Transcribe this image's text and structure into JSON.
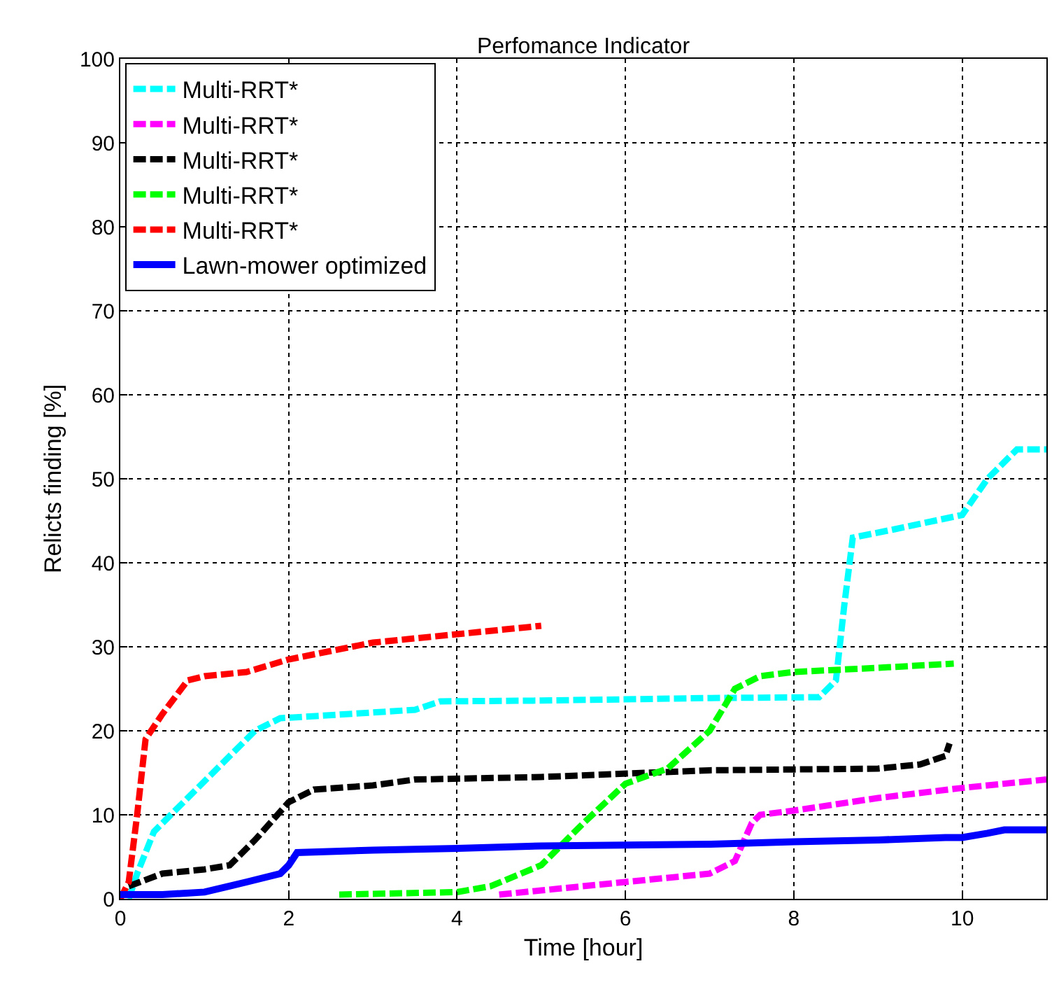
{
  "chart_data": {
    "type": "line",
    "title": "Perfomance Indicator",
    "xlabel": "Time [hour]",
    "ylabel": "Relicts finding [%]",
    "xlim": [
      0,
      11
    ],
    "xticks": [
      0,
      2,
      4,
      6,
      8,
      10
    ],
    "ylim": [
      0,
      100
    ],
    "yticks": [
      0,
      10,
      20,
      30,
      40,
      50,
      60,
      70,
      80,
      90,
      100
    ],
    "grid": true,
    "legend": "top left",
    "marker": "none",
    "series": [
      {
        "name": "Multi-RRT*",
        "color": "#00ffff",
        "line_style": "dashed",
        "x": [
          0.1,
          0.2,
          0.4,
          0.8,
          1.2,
          1.6,
          1.9,
          2.4,
          3.5,
          3.8,
          5,
          7,
          8.3,
          8.5,
          8.6,
          8.7,
          9.2,
          10,
          10.3,
          10.65,
          11
        ],
        "values": [
          0,
          3,
          8,
          12,
          16,
          20,
          21.5,
          21.8,
          22.5,
          23.5,
          23.6,
          23.9,
          24,
          26,
          35,
          43,
          44,
          45.7,
          50,
          53.5,
          53.5
        ]
      },
      {
        "name": "Multi-RRT*",
        "color": "#ff00ff",
        "line_style": "dashed",
        "x": [
          4.5,
          5,
          6,
          7,
          7.3,
          7.5,
          7.6,
          8,
          9,
          10,
          11
        ],
        "values": [
          0.5,
          1,
          2,
          3,
          4.5,
          9,
          10,
          10.5,
          12,
          13.2,
          14.2
        ]
      },
      {
        "name": "Multi-RRT*",
        "color": "#000000",
        "line_style": "dashed",
        "x": [
          0.1,
          0.5,
          1,
          1.3,
          1.6,
          2,
          2.3,
          3,
          3.5,
          5,
          7,
          9,
          9.5,
          9.8,
          9.85
        ],
        "values": [
          1.5,
          3,
          3.5,
          4,
          7,
          11.5,
          13,
          13.5,
          14.2,
          14.5,
          15.3,
          15.5,
          16,
          17,
          18.5
        ]
      },
      {
        "name": "Multi-RRT*",
        "color": "#00ff00",
        "line_style": "dashed",
        "x": [
          2.6,
          4,
          4.4,
          5,
          5.5,
          6,
          6.5,
          7,
          7.3,
          7.6,
          8,
          9,
          9.9
        ],
        "values": [
          0.5,
          0.8,
          1.5,
          4,
          9,
          13.7,
          15.5,
          20,
          25,
          26.5,
          27,
          27.5,
          28
        ]
      },
      {
        "name": "Multi-RRT*",
        "color": "#ff0000",
        "line_style": "dashed",
        "x": [
          0,
          0.1,
          0.2,
          0.3,
          0.5,
          0.8,
          1,
          1.5,
          2,
          2.5,
          3,
          3.5,
          4,
          5
        ],
        "values": [
          0,
          2,
          10,
          19,
          22,
          26,
          26.5,
          27,
          28.5,
          29.5,
          30.5,
          31,
          31.5,
          32.5
        ]
      },
      {
        "name": "Lawn-mower optimized",
        "color": "#0000ff",
        "line_style": "solid",
        "x": [
          0,
          0.5,
          1,
          1.5,
          1.9,
          2,
          2.1,
          3,
          4,
          5,
          7,
          8,
          9,
          9.8,
          10,
          10.3,
          10.5,
          11
        ],
        "values": [
          0.5,
          0.5,
          0.8,
          2,
          3,
          4,
          5.5,
          5.8,
          6,
          6.3,
          6.5,
          6.8,
          7,
          7.3,
          7.3,
          7.8,
          8.2,
          8.2
        ]
      }
    ]
  }
}
